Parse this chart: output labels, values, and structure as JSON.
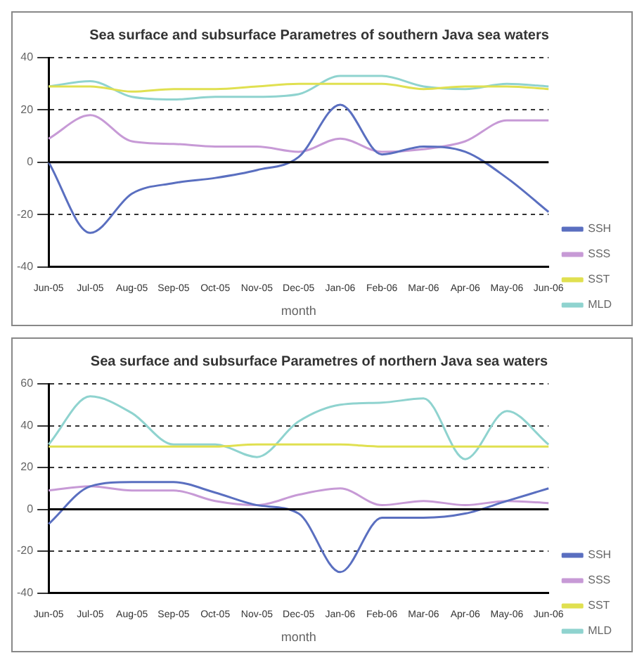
{
  "chart_data": [
    {
      "type": "line",
      "title": "Sea surface and subsurface Parametres of southern Java sea waters",
      "xlabel": "month",
      "categories": [
        "Jun-05",
        "Jul-05",
        "Aug-05",
        "Sep-05",
        "Oct-05",
        "Nov-05",
        "Dec-05",
        "Jan-06",
        "Feb-06",
        "Mar-06",
        "Apr-06",
        "May-06",
        "Jun-06"
      ],
      "series": [
        {
          "name": "SSH",
          "color": "#5a6fc0",
          "values": [
            0,
            -27,
            -12,
            -8,
            -6,
            -3,
            2,
            22,
            3,
            6,
            4,
            -6,
            -19
          ]
        },
        {
          "name": "SSS",
          "color": "#c79ad6",
          "values": [
            9,
            18,
            8,
            7,
            6,
            6,
            4,
            9,
            4,
            5,
            8,
            16,
            16
          ]
        },
        {
          "name": "SST",
          "color": "#e0e050",
          "values": [
            29,
            29,
            27,
            28,
            28,
            29,
            30,
            30,
            30,
            28,
            29,
            29,
            28
          ]
        },
        {
          "name": "MLD",
          "color": "#8fd3cf",
          "values": [
            29,
            31,
            25,
            24,
            25,
            25,
            26,
            33,
            33,
            29,
            28,
            30,
            29
          ]
        }
      ],
      "ref_lines": [
        {
          "axis": "y",
          "value": 0,
          "color": "#000000"
        }
      ],
      "ylim": [
        -40,
        40
      ],
      "yticks": [
        -40,
        -20,
        0,
        20,
        40
      ],
      "grid": "y",
      "legend": "bottom right",
      "line_style": "solid",
      "marker": "none"
    },
    {
      "type": "line",
      "title": "Sea surface and subsurface Parametres of northern Java sea waters",
      "xlabel": "month",
      "categories": [
        "Jun-05",
        "Jul-05",
        "Aug-05",
        "Sep-05",
        "Oct-05",
        "Nov-05",
        "Dec-05",
        "Jan-06",
        "Feb-06",
        "Mar-06",
        "Apr-06",
        "May-06",
        "Jun-06"
      ],
      "series": [
        {
          "name": "SSH",
          "color": "#5a6fc0",
          "values": [
            -7,
            11,
            13,
            13,
            8,
            2,
            -2,
            -30,
            -4,
            -4,
            -2,
            4,
            10
          ]
        },
        {
          "name": "SSS",
          "color": "#c79ad6",
          "values": [
            9,
            11,
            9,
            9,
            4,
            2,
            7,
            10,
            2,
            4,
            2,
            4,
            3
          ]
        },
        {
          "name": "SST",
          "color": "#e0e050",
          "values": [
            30,
            30,
            30,
            30,
            30,
            31,
            31,
            31,
            30,
            30,
            30,
            30,
            30
          ]
        },
        {
          "name": "MLD",
          "color": "#8fd3cf",
          "values": [
            31,
            54,
            46,
            31,
            31,
            25,
            42,
            50,
            51,
            53,
            24,
            47,
            31
          ]
        }
      ],
      "ref_lines": [
        {
          "axis": "y",
          "value": 0,
          "color": "#000000"
        }
      ],
      "ylim": [
        -40,
        60
      ],
      "yticks": [
        -40,
        -20,
        0,
        20,
        40,
        60
      ],
      "grid": "y",
      "legend": "bottom right",
      "line_style": "solid",
      "marker": "none"
    }
  ]
}
